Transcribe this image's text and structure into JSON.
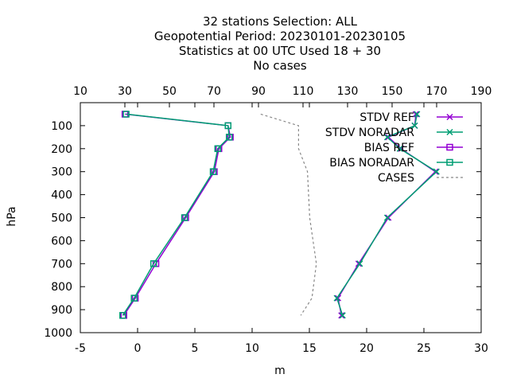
{
  "chart_data": {
    "type": "line",
    "title_lines": [
      "32 stations Selection: ALL",
      "Geopotential  Period: 20230101-20230105",
      "Statistics at 00 UTC  Used  18 + 30",
      "No cases"
    ],
    "xlabel": "m",
    "ylabel": "hPa",
    "xlim": [
      -5,
      30
    ],
    "ylim": [
      1000,
      0
    ],
    "x_ticks": [
      -5,
      0,
      5,
      10,
      15,
      20,
      25,
      30
    ],
    "y_ticks": [
      100,
      200,
      300,
      400,
      500,
      600,
      700,
      800,
      900,
      1000
    ],
    "x2lim": [
      10,
      190
    ],
    "x2_ticks": [
      10,
      30,
      50,
      70,
      90,
      110,
      130,
      150,
      170,
      190
    ],
    "legend_position": "top-right",
    "series": [
      {
        "name": "STDV REF",
        "color": "#9400d3",
        "marker": "x",
        "axis": "x1",
        "points": [
          [
            24.3,
            50
          ],
          [
            24.2,
            100
          ],
          [
            21.9,
            150
          ],
          [
            23.0,
            200
          ],
          [
            26.0,
            300
          ],
          [
            21.9,
            500
          ],
          [
            19.3,
            700
          ],
          [
            17.5,
            850
          ],
          [
            17.8,
            925
          ]
        ]
      },
      {
        "name": "STDV NORADAR",
        "color": "#009e73",
        "marker": "x",
        "axis": "x1",
        "points": [
          [
            24.4,
            50
          ],
          [
            24.2,
            100
          ],
          [
            21.8,
            150
          ],
          [
            22.9,
            200
          ],
          [
            26.1,
            300
          ],
          [
            21.8,
            500
          ],
          [
            19.4,
            700
          ],
          [
            17.4,
            850
          ],
          [
            17.9,
            925
          ]
        ]
      },
      {
        "name": "BIAS REF",
        "color": "#9400d3",
        "marker": "square",
        "axis": "x1",
        "points": [
          [
            -1.1,
            50
          ],
          [
            7.9,
            100
          ],
          [
            8.1,
            150
          ],
          [
            7.1,
            200
          ],
          [
            6.7,
            300
          ],
          [
            4.2,
            500
          ],
          [
            1.6,
            700
          ],
          [
            -0.2,
            850
          ],
          [
            -1.2,
            925
          ]
        ]
      },
      {
        "name": "BIAS NORADAR",
        "color": "#009e73",
        "marker": "square",
        "axis": "x1",
        "points": [
          [
            -1.0,
            50
          ],
          [
            7.9,
            100
          ],
          [
            8.0,
            150
          ],
          [
            7.0,
            200
          ],
          [
            6.6,
            300
          ],
          [
            4.1,
            500
          ],
          [
            1.4,
            700
          ],
          [
            -0.3,
            850
          ],
          [
            -1.3,
            925
          ]
        ]
      },
      {
        "name": "CASES",
        "color": "#888888",
        "marker": "none",
        "dash": true,
        "axis": "x2",
        "points": [
          [
            91,
            50
          ],
          [
            108,
            100
          ],
          [
            108,
            200
          ],
          [
            112,
            300
          ],
          [
            113,
            500
          ],
          [
            116,
            700
          ],
          [
            114,
            850
          ],
          [
            109,
            925
          ]
        ]
      }
    ]
  }
}
